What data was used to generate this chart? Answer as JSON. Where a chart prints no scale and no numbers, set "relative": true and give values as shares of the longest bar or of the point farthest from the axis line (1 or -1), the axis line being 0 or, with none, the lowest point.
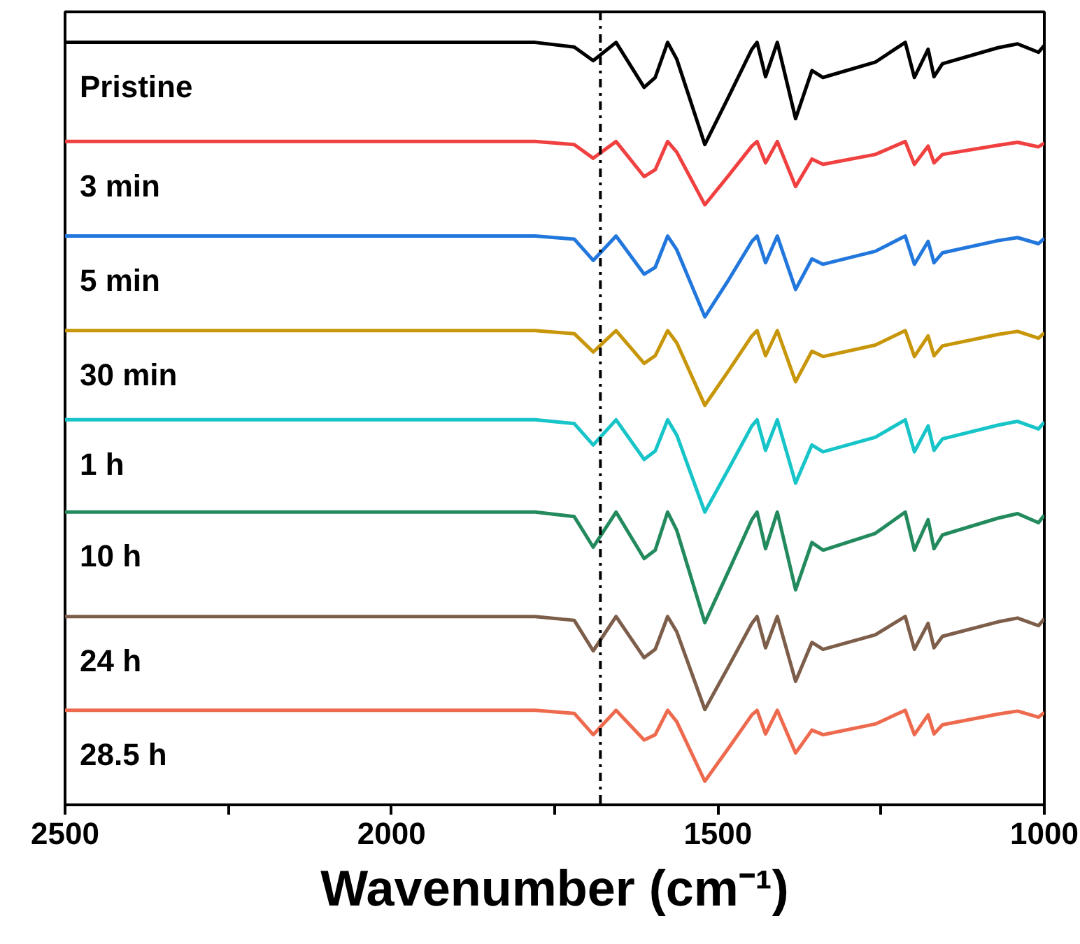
{
  "chart_data": {
    "type": "line",
    "relative": true,
    "xlabel": "Wavenumber (cm⁻¹)",
    "x": [
      2500,
      2200,
      1900,
      1780,
      1720,
      1691,
      1656,
      1613,
      1596,
      1577,
      1563,
      1520,
      1484,
      1448,
      1440,
      1427,
      1409,
      1381,
      1356,
      1339,
      1259,
      1213,
      1199,
      1178,
      1169,
      1156,
      1071,
      1041,
      1009,
      1000
    ],
    "xlim": [
      2500,
      1000
    ],
    "xticks": [
      2500,
      {
        "value": 2250,
        "label": null
      },
      2000,
      {
        "value": 1750,
        "label": null
      },
      1500,
      {
        "value": 1250,
        "label": null
      },
      1000
    ],
    "tick_labels": "x",
    "grid": false,
    "line_style": "solid",
    "marker": "none",
    "series": [
      {
        "name": "Pristine",
        "color": "#000000",
        "values": [
          1.0,
          1.0,
          1.0,
          1.0,
          0.994,
          0.976,
          1.0,
          0.941,
          0.954,
          1.0,
          0.978,
          0.866,
          0.928,
          0.991,
          1.0,
          0.955,
          1.0,
          0.9,
          0.963,
          0.954,
          0.974,
          1.0,
          0.954,
          0.991,
          0.955,
          0.972,
          0.993,
          0.998,
          0.987,
          0.996
        ]
      },
      {
        "name": "3 min",
        "color": "#f04040",
        "values": [
          0.87,
          0.87,
          0.87,
          0.87,
          0.866,
          0.848,
          0.87,
          0.824,
          0.833,
          0.87,
          0.856,
          0.787,
          0.825,
          0.864,
          0.87,
          0.842,
          0.87,
          0.811,
          0.847,
          0.84,
          0.853,
          0.87,
          0.84,
          0.864,
          0.842,
          0.853,
          0.865,
          0.869,
          0.863,
          0.868
        ]
      },
      {
        "name": "5 min",
        "color": "#2277dd",
        "values": [
          0.746,
          0.746,
          0.746,
          0.746,
          0.742,
          0.714,
          0.746,
          0.696,
          0.705,
          0.746,
          0.728,
          0.64,
          0.688,
          0.739,
          0.746,
          0.711,
          0.746,
          0.676,
          0.716,
          0.709,
          0.726,
          0.746,
          0.709,
          0.739,
          0.711,
          0.724,
          0.74,
          0.744,
          0.736,
          0.743
        ]
      },
      {
        "name": "30 min",
        "color": "#c8960a",
        "values": [
          0.622,
          0.622,
          0.622,
          0.622,
          0.618,
          0.594,
          0.622,
          0.579,
          0.589,
          0.622,
          0.606,
          0.524,
          0.569,
          0.615,
          0.622,
          0.589,
          0.622,
          0.555,
          0.595,
          0.588,
          0.603,
          0.622,
          0.588,
          0.615,
          0.589,
          0.602,
          0.617,
          0.621,
          0.612,
          0.619
        ]
      },
      {
        "name": "1 h",
        "color": "#17c4c8",
        "values": [
          0.505,
          0.505,
          0.505,
          0.505,
          0.5,
          0.472,
          0.505,
          0.453,
          0.464,
          0.505,
          0.485,
          0.384,
          0.44,
          0.497,
          0.505,
          0.465,
          0.505,
          0.422,
          0.472,
          0.463,
          0.482,
          0.505,
          0.463,
          0.497,
          0.465,
          0.48,
          0.498,
          0.503,
          0.493,
          0.502
        ]
      },
      {
        "name": "10 h",
        "color": "#238a5e",
        "values": [
          0.384,
          0.384,
          0.384,
          0.384,
          0.378,
          0.338,
          0.384,
          0.323,
          0.334,
          0.384,
          0.36,
          0.239,
          0.306,
          0.374,
          0.384,
          0.336,
          0.384,
          0.282,
          0.344,
          0.334,
          0.356,
          0.384,
          0.334,
          0.374,
          0.336,
          0.354,
          0.376,
          0.382,
          0.37,
          0.38
        ]
      },
      {
        "name": "24 h",
        "color": "#7d5e4a",
        "values": [
          0.247,
          0.247,
          0.247,
          0.247,
          0.242,
          0.202,
          0.247,
          0.193,
          0.204,
          0.247,
          0.227,
          0.125,
          0.181,
          0.238,
          0.247,
          0.206,
          0.247,
          0.162,
          0.213,
          0.204,
          0.223,
          0.247,
          0.204,
          0.238,
          0.206,
          0.221,
          0.24,
          0.245,
          0.235,
          0.244
        ]
      },
      {
        "name": "28.5 h",
        "color": "#ee6a4e",
        "values": [
          0.124,
          0.124,
          0.124,
          0.124,
          0.12,
          0.092,
          0.124,
          0.085,
          0.092,
          0.124,
          0.109,
          0.031,
          0.074,
          0.118,
          0.124,
          0.093,
          0.124,
          0.068,
          0.098,
          0.092,
          0.106,
          0.124,
          0.092,
          0.118,
          0.093,
          0.105,
          0.119,
          0.123,
          0.115,
          0.121
        ]
      }
    ],
    "ref_lines": [
      {
        "axis": "x",
        "value": 1680,
        "label": null,
        "color": "#000000",
        "line_style": "dashdot"
      }
    ]
  }
}
